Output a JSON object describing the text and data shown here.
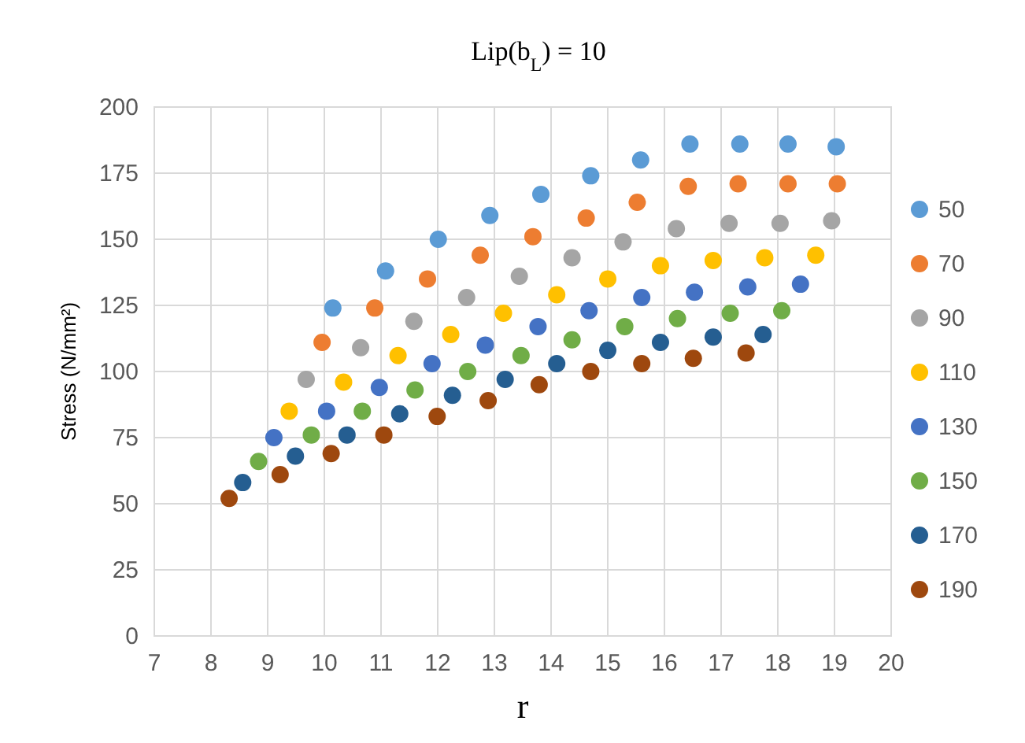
{
  "chart_data": {
    "type": "scatter",
    "title": "Lip(b$_{L}$) = 10",
    "xlabel": "r",
    "ylabel": "Stress (N/mm²)",
    "xlim": [
      7,
      20
    ],
    "xticks": [
      7,
      8,
      9,
      10,
      11,
      12,
      13,
      14,
      15,
      16,
      17,
      18,
      19,
      20
    ],
    "ylim": [
      0,
      200
    ],
    "yticks": [
      0,
      25,
      50,
      75,
      100,
      125,
      150,
      175,
      200
    ],
    "grid": true,
    "legend": "right",
    "marker": "circle",
    "series": [
      {
        "name": "50",
        "color": "#5b9bd5",
        "x": [
          10.15,
          11.08,
          12.01,
          12.92,
          13.82,
          14.7,
          15.58,
          16.45,
          17.33,
          18.18,
          19.03
        ],
        "values": [
          124,
          138,
          150,
          159,
          167,
          174,
          180,
          186,
          186,
          186,
          185
        ]
      },
      {
        "name": "70",
        "color": "#ed7d31",
        "x": [
          9.96,
          10.89,
          11.82,
          12.75,
          13.68,
          14.62,
          15.52,
          16.42,
          17.3,
          18.18,
          19.05
        ],
        "values": [
          111,
          124,
          135,
          144,
          151,
          158,
          164,
          170,
          171,
          171,
          171
        ]
      },
      {
        "name": "90",
        "color": "#a5a5a5",
        "x": [
          9.68,
          10.64,
          11.58,
          12.51,
          13.44,
          14.37,
          15.27,
          16.21,
          17.14,
          18.04,
          18.95
        ],
        "values": [
          97,
          109,
          119,
          128,
          136,
          143,
          149,
          154,
          156,
          156,
          157
        ]
      },
      {
        "name": "110",
        "color": "#ffc000",
        "x": [
          9.38,
          10.34,
          11.3,
          12.23,
          13.16,
          14.1,
          15,
          15.93,
          16.86,
          17.77,
          18.67
        ],
        "values": [
          85,
          96,
          106,
          114,
          122,
          129,
          135,
          140,
          142,
          143,
          144
        ]
      },
      {
        "name": "130",
        "color": "#4472c4",
        "x": [
          9.11,
          10.04,
          10.97,
          11.9,
          12.84,
          13.77,
          14.67,
          15.6,
          16.53,
          17.47,
          18.4
        ],
        "values": [
          75,
          85,
          94,
          103,
          110,
          117,
          123,
          128,
          130,
          132,
          133
        ]
      },
      {
        "name": "150",
        "color": "#70ad47",
        "x": [
          8.84,
          9.77,
          10.67,
          11.6,
          12.53,
          13.47,
          14.37,
          15.3,
          16.23,
          17.16,
          18.07
        ],
        "values": [
          66,
          76,
          85,
          93,
          100,
          106,
          112,
          117,
          120,
          122,
          123
        ]
      },
      {
        "name": "170",
        "color": "#255e91",
        "x": [
          8.56,
          9.49,
          10.4,
          11.33,
          12.26,
          13.19,
          14.1,
          15,
          15.93,
          16.86,
          17.74
        ],
        "values": [
          58,
          68,
          76,
          84,
          91,
          97,
          103,
          108,
          111,
          113,
          114
        ]
      },
      {
        "name": "190",
        "color": "#9e480e",
        "x": [
          8.32,
          9.22,
          10.12,
          11.05,
          11.99,
          12.89,
          13.79,
          14.7,
          15.6,
          16.51,
          17.44
        ],
        "values": [
          52,
          61,
          69,
          76,
          83,
          89,
          95,
          100,
          103,
          105,
          107
        ]
      }
    ]
  }
}
